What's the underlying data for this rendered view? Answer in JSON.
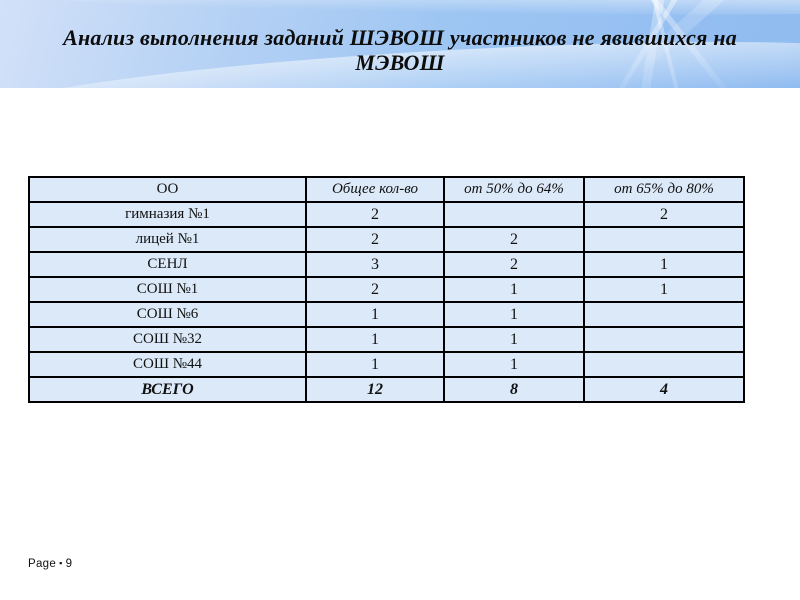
{
  "header": {
    "title_lines": [
      "Анализ выполнения заданий ШЭВОШ участников не явившихся на",
      "МЭВОШ"
    ]
  },
  "table": {
    "columns": [
      "ОО",
      "Общее кол-во",
      "от 50% до 64%",
      "от 65% до 80%"
    ],
    "rows": [
      [
        "гимназия №1",
        "2",
        "",
        "2"
      ],
      [
        "лицей №1",
        "2",
        "2",
        ""
      ],
      [
        "СЕНЛ",
        "3",
        "2",
        "1"
      ],
      [
        "СОШ №1",
        "2",
        "1",
        "1"
      ],
      [
        "СОШ №6",
        "1",
        "1",
        ""
      ],
      [
        "СОШ №32",
        "1",
        "1",
        ""
      ],
      [
        "СОШ №44",
        "1",
        "1",
        ""
      ]
    ],
    "total_row": [
      "ВСЕГО",
      "12",
      "8",
      "4"
    ]
  },
  "footer": {
    "label": "Page",
    "bullet": "▪",
    "page_number": "9"
  },
  "colors": {
    "header_gradient_left": "#d2e1f8",
    "header_gradient_right": "#8fbbf0",
    "cell_background": "#dbe9f8",
    "table_border": "#000000",
    "title_text": "#0d0d0d",
    "page_background": "#ffffff"
  }
}
